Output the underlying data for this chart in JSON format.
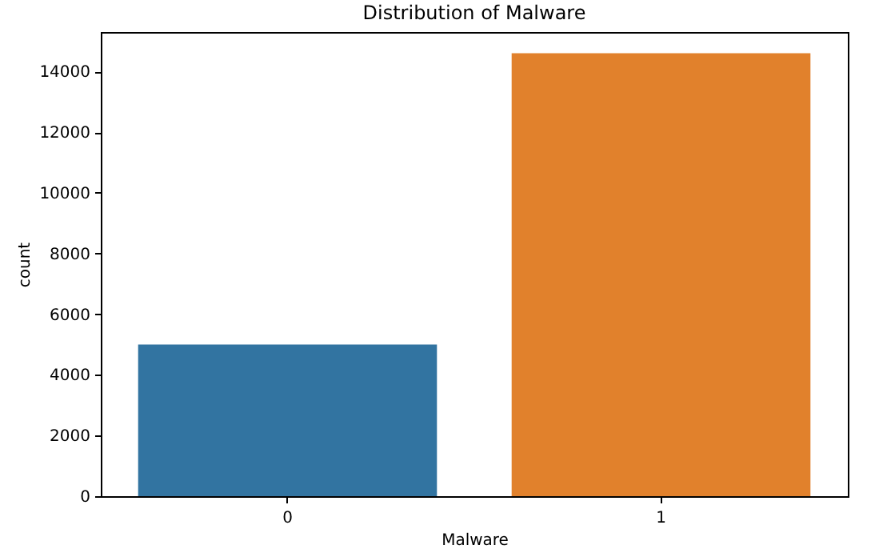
{
  "chart_data": {
    "type": "bar",
    "title": "Distribution of Malware",
    "xlabel": "Malware",
    "ylabel": "count",
    "categories": [
      "0",
      "1"
    ],
    "values": [
      5000,
      14600
    ],
    "colors": [
      "#3274a1",
      "#e1812c"
    ],
    "ylim": [
      0,
      15300
    ],
    "yticks": [
      0,
      2000,
      4000,
      6000,
      8000,
      10000,
      12000,
      14000
    ],
    "grid": false
  }
}
